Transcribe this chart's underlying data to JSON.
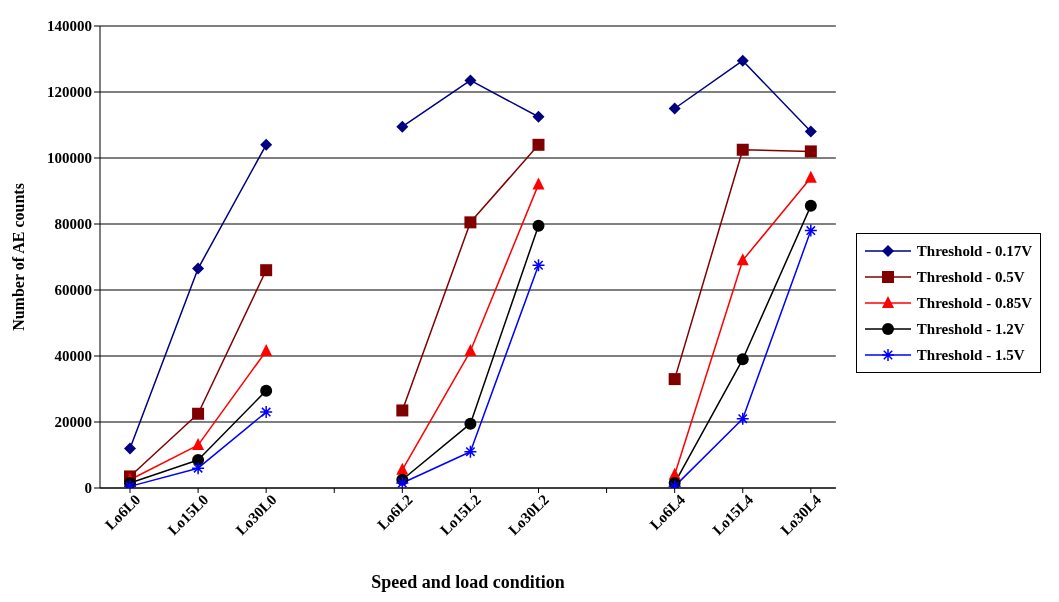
{
  "chart_data": {
    "type": "line",
    "xlabel": "Speed and load condition",
    "ylabel": "Number of AE counts",
    "categories": [
      "Lo6L0",
      "Lo15L0",
      "Lo30L0",
      null,
      "Lo6L2",
      "Lo15L2",
      "Lo30L2",
      null,
      "Lo6L4",
      "Lo15L4",
      "Lo30L4"
    ],
    "ylim": [
      0,
      140000
    ],
    "yticks": [
      0,
      20000,
      40000,
      60000,
      80000,
      100000,
      120000,
      140000
    ],
    "grid": "y",
    "legend": "right",
    "series": [
      {
        "name": "Threshold - 0.17V",
        "color": "#000080",
        "marker": "diamond",
        "values": [
          12000,
          66500,
          104000,
          null,
          109500,
          123500,
          112500,
          null,
          115000,
          129500,
          108000
        ]
      },
      {
        "name": "Threshold - 0.5V",
        "color": "#800000",
        "marker": "square",
        "values": [
          3500,
          22500,
          66000,
          null,
          23500,
          80500,
          104000,
          null,
          33000,
          102500,
          102000
        ]
      },
      {
        "name": "Threshold - 0.85V",
        "color": "#ff0000",
        "marker": "triangle",
        "values": [
          2500,
          13000,
          41500,
          null,
          5500,
          41500,
          92000,
          null,
          4000,
          69000,
          94000
        ]
      },
      {
        "name": "Threshold - 1.2V",
        "color": "#000000",
        "marker": "circle",
        "values": [
          1500,
          8500,
          29500,
          null,
          2500,
          19500,
          79500,
          null,
          1500,
          39000,
          85500
        ]
      },
      {
        "name": "Threshold - 1.5V",
        "color": "#0000ff",
        "marker": "cross",
        "values": [
          500,
          6000,
          23000,
          null,
          1500,
          11000,
          67500,
          null,
          500,
          21000,
          78000
        ]
      }
    ]
  }
}
